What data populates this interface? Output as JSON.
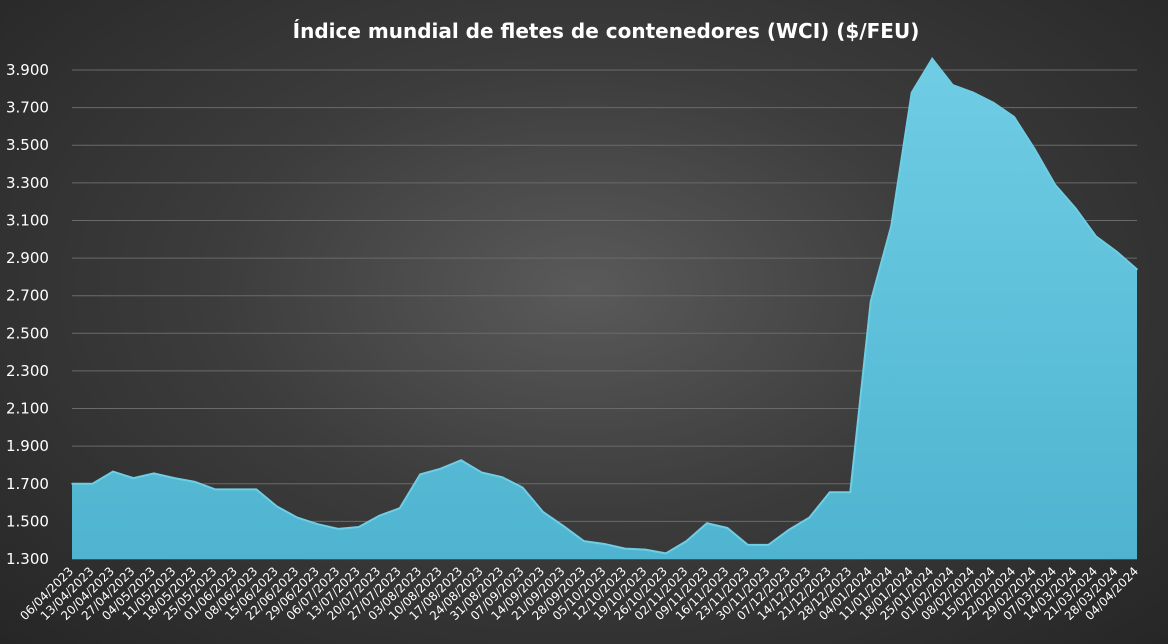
{
  "chart_data": {
    "type": "area",
    "title": "Índice mundial de fletes de contenedores (WCI) ($/FEU)",
    "xlabel": "",
    "ylabel": "",
    "ylim": [
      1300,
      3900
    ],
    "yticks": [
      1300,
      1500,
      1700,
      1900,
      2100,
      2300,
      2500,
      2700,
      2900,
      3100,
      3300,
      3500,
      3700,
      3900
    ],
    "ytick_labels": [
      "1.300",
      "1.500",
      "1.700",
      "1.900",
      "2.100",
      "2.300",
      "2.500",
      "2.700",
      "2.900",
      "3.100",
      "3.300",
      "3.500",
      "3.700",
      "3.900"
    ],
    "grid": true,
    "legend": "none",
    "colors": {
      "fill": "#52b8d3",
      "fill_highlight": "#6fcde4",
      "grid": "#6a6a6a",
      "text": "#ffffff"
    },
    "x": [
      "06/04/2023",
      "13/04/2023",
      "20/04/2023",
      "27/04/2023",
      "04/05/2023",
      "11/05/2023",
      "18/05/2023",
      "25/05/2023",
      "01/06/2023",
      "08/06/2023",
      "15/06/2023",
      "22/06/2023",
      "29/06/2023",
      "06/07/2023",
      "13/07/2023",
      "20/07/2023",
      "27/07/2023",
      "03/08/2023",
      "10/08/2023",
      "17/08/2023",
      "24/08/2023",
      "31/08/2023",
      "07/09/2023",
      "14/09/2023",
      "21/09/2023",
      "28/09/2023",
      "05/10/2023",
      "12/10/2023",
      "19/10/2023",
      "26/10/2023",
      "02/11/2023",
      "09/11/2023",
      "16/11/2023",
      "23/11/2023",
      "30/11/2023",
      "07/12/2023",
      "14/12/2023",
      "21/12/2023",
      "28/12/2023",
      "04/01/2024",
      "11/01/2024",
      "18/01/2024",
      "25/01/2024",
      "01/02/2024",
      "08/02/2024",
      "15/02/2024",
      "22/02/2024",
      "29/02/2024",
      "07/03/2024",
      "14/03/2024",
      "21/03/2024",
      "28/03/2024",
      "04/04/2024"
    ],
    "values": [
      1700,
      1700,
      1765,
      1730,
      1755,
      1730,
      1710,
      1670,
      1670,
      1670,
      1580,
      1520,
      1485,
      1460,
      1470,
      1530,
      1570,
      1750,
      1780,
      1825,
      1760,
      1735,
      1680,
      1550,
      1475,
      1395,
      1380,
      1355,
      1350,
      1330,
      1395,
      1490,
      1465,
      1375,
      1375,
      1455,
      1520,
      1655,
      1655,
      2670,
      3070,
      3780,
      3960,
      3820,
      3780,
      3725,
      3650,
      3480,
      3290,
      3165,
      3015,
      2935,
      2840
    ]
  }
}
